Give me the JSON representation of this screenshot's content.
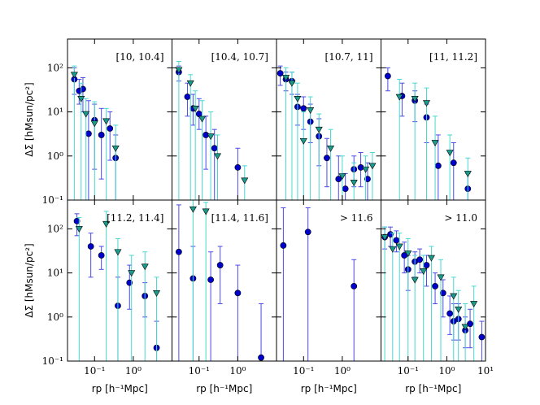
{
  "chart_data": {
    "type": "scatter",
    "xlabel": "rp [h⁻¹Mpc]",
    "ylabel": "ΔΣ [hMsun/pc²]",
    "xlog": true,
    "ylog": true,
    "xlim": [
      0.02,
      10
    ],
    "ylim": [
      0.1,
      450
    ],
    "xticks": [
      {
        "value": 0.1,
        "label": "10⁻¹"
      },
      {
        "value": 1,
        "label": "10⁰"
      },
      {
        "value": 10,
        "label": "10¹"
      }
    ],
    "yticks": [
      {
        "value": 0.1,
        "label": "10⁻¹"
      },
      {
        "value": 1,
        "label": "10⁰"
      },
      {
        "value": 10,
        "label": "10¹"
      },
      {
        "value": 100,
        "label": "10²"
      }
    ],
    "panels": [
      {
        "label": "[10, 10.4]",
        "series": [
          {
            "marker": "circle",
            "color": "#0000cc",
            "ecolor": "#4a4ae8",
            "x": [
              0.03,
              0.04,
              0.05,
              0.07,
              0.1,
              0.15,
              0.25,
              0.35
            ],
            "values": [
              55,
              30,
              33,
              3.2,
              6.5,
              3,
              4.2,
              0.9
            ],
            "lower": [
              25,
              15,
              10,
              0.05,
              0.5,
              0.3,
              0.8,
              0.05
            ],
            "upper": [
              100,
              55,
              60,
              18,
              15,
              12,
              10,
              3
            ]
          },
          {
            "marker": "triangle",
            "color": "#1a9c8c",
            "ecolor": "#48d8d0",
            "x": [
              0.03,
              0.045,
              0.06,
              0.1,
              0.2,
              0.35
            ],
            "values": [
              70,
              20,
              9,
              5.5,
              6.2,
              1.5
            ],
            "lower": [
              0.05,
              0.05,
              0.05,
              0.05,
              0.05,
              0.05
            ],
            "upper": [
              110,
              45,
              20,
              17,
              12,
              5
            ]
          }
        ]
      },
      {
        "label": "[10.4, 10.7]",
        "series": [
          {
            "marker": "circle",
            "color": "#0000cc",
            "ecolor": "#4a4ae8",
            "x": [
              0.03,
              0.05,
              0.07,
              0.1,
              0.15,
              0.25,
              1
            ],
            "values": [
              80,
              22,
              12,
              9,
              3,
              1.5,
              0.55
            ],
            "lower": [
              50,
              8,
              5,
              4,
              0.5,
              0.05,
              0.1
            ],
            "upper": [
              110,
              45,
              25,
              20,
              8,
              4,
              1.5
            ]
          },
          {
            "marker": "triangle",
            "color": "#1a9c8c",
            "ecolor": "#48d8d0",
            "x": [
              0.03,
              0.06,
              0.08,
              0.12,
              0.2,
              0.3,
              1.5
            ],
            "values": [
              90,
              45,
              12,
              7,
              2.8,
              1,
              0.28
            ],
            "lower": [
              0.05,
              0.05,
              0.05,
              0.05,
              0.05,
              0.05,
              0.05
            ],
            "upper": [
              140,
              70,
              30,
              18,
              10,
              3,
              0.6
            ]
          }
        ]
      },
      {
        "label": "[10.7, 11]",
        "series": [
          {
            "marker": "circle",
            "color": "#0000cc",
            "ecolor": "#4a4ae8",
            "x": [
              0.025,
              0.035,
              0.05,
              0.07,
              0.1,
              0.15,
              0.25,
              0.4,
              0.8,
              1.2,
              2,
              3,
              4.5
            ],
            "values": [
              75,
              55,
              50,
              13,
              12,
              6,
              2.8,
              0.9,
              0.3,
              0.18,
              0.5,
              0.55,
              0.3
            ],
            "lower": [
              40,
              30,
              25,
              5,
              4,
              2,
              0.6,
              0.2,
              0.05,
              0.05,
              0.2,
              0.2,
              0.1
            ],
            "upper": [
              110,
              80,
              80,
              25,
              22,
              15,
              7,
              2.5,
              1,
              0.4,
              1,
              1.2,
              0.7
            ]
          },
          {
            "marker": "triangle",
            "color": "#1a9c8c",
            "ecolor": "#48d8d0",
            "x": [
              0.035,
              0.05,
              0.07,
              0.1,
              0.15,
              0.25,
              0.5,
              1,
              2,
              4,
              6
            ],
            "values": [
              60,
              45,
              20,
              2.2,
              11,
              4,
              1.5,
              0.35,
              0.25,
              0.5,
              0.6
            ],
            "lower": [
              0.05,
              0.05,
              0.05,
              0.05,
              0.05,
              0.05,
              0.05,
              0.05,
              0.05,
              0.05,
              0.05
            ],
            "upper": [
              100,
              80,
              45,
              10,
              22,
              9,
              4,
              1,
              0.7,
              1,
              1.2
            ]
          }
        ]
      },
      {
        "label": "[11, 11.2]",
        "series": [
          {
            "marker": "circle",
            "color": "#0000cc",
            "ecolor": "#4a4ae8",
            "x": [
              0.03,
              0.07,
              0.15,
              0.3,
              0.6,
              1.5,
              3.5
            ],
            "values": [
              65,
              23,
              18,
              7.5,
              0.6,
              0.7,
              0.18
            ],
            "lower": [
              30,
              8,
              6,
              2,
              0.05,
              0.1,
              0.05
            ],
            "upper": [
              100,
              45,
              30,
              15,
              3,
              2,
              0.4
            ]
          },
          {
            "marker": "triangle",
            "color": "#1a9c8c",
            "ecolor": "#48d8d0",
            "x": [
              0.06,
              0.15,
              0.3,
              0.5,
              1.2,
              3.5
            ],
            "values": [
              22,
              20,
              16,
              2,
              1.2,
              0.4
            ],
            "lower": [
              0.05,
              0.05,
              0.05,
              0.05,
              0.05,
              0.05
            ],
            "upper": [
              55,
              45,
              35,
              8,
              3,
              0.9
            ]
          }
        ]
      },
      {
        "label": "[11.2, 11.4]",
        "series": [
          {
            "marker": "circle",
            "color": "#0000cc",
            "ecolor": "#4a4ae8",
            "x": [
              0.035,
              0.08,
              0.15,
              0.4,
              0.8,
              2,
              4
            ],
            "values": [
              150,
              40,
              25,
              1.8,
              6,
              3,
              0.2
            ],
            "lower": [
              70,
              8,
              12,
              0.05,
              1.5,
              1,
              0.05
            ],
            "upper": [
              220,
              80,
              40,
              8,
              15,
              6,
              0.8
            ]
          },
          {
            "marker": "triangle",
            "color": "#1a9c8c",
            "ecolor": "#48d8d0",
            "x": [
              0.04,
              0.2,
              0.4,
              0.9,
              2,
              4
            ],
            "values": [
              100,
              130,
              30,
              10,
              14,
              3.5
            ],
            "lower": [
              0.05,
              0.05,
              0.05,
              0.05,
              0.05,
              0.05
            ],
            "upper": [
              180,
              250,
              60,
              25,
              30,
              8
            ]
          }
        ]
      },
      {
        "label": "[11.4, 11.6]",
        "series": [
          {
            "marker": "circle",
            "color": "#0000cc",
            "ecolor": "#4a4ae8",
            "x": [
              0.03,
              0.07,
              0.2,
              0.35,
              1,
              4
            ],
            "values": [
              30,
              7.5,
              7,
              15,
              3.5,
              0.12
            ],
            "lower": [
              0.05,
              0.05,
              0.05,
              2,
              0.05,
              0.05
            ],
            "upper": [
              350,
              40,
              30,
              40,
              15,
              2
            ]
          },
          {
            "marker": "triangle",
            "color": "#1a9c8c",
            "ecolor": "#48d8d0",
            "x": [
              0.07,
              0.15
            ],
            "values": [
              280,
              250
            ],
            "lower": [
              0.05,
              0.05
            ],
            "upper": [
              500,
              400
            ]
          }
        ]
      },
      {
        "label": "> 11.6",
        "series": [
          {
            "marker": "circle",
            "color": "#0000cc",
            "ecolor": "#4a4ae8",
            "x": [
              0.03,
              0.13,
              2
            ],
            "values": [
              42,
              85,
              5
            ],
            "lower": [
              0.05,
              0.05,
              0.05
            ],
            "upper": [
              300,
              300,
              20
            ]
          }
        ]
      },
      {
        "label": "> 11.0",
        "series": [
          {
            "marker": "circle",
            "color": "#0000cc",
            "ecolor": "#4a4ae8",
            "x": [
              0.025,
              0.035,
              0.05,
              0.08,
              0.1,
              0.15,
              0.2,
              0.3,
              0.5,
              0.8,
              1.2,
              1.5,
              2,
              3,
              4,
              8
            ],
            "values": [
              65,
              75,
              55,
              25,
              12,
              18,
              20,
              15,
              5,
              3.5,
              1.2,
              0.8,
              0.9,
              0.5,
              0.7,
              0.35
            ],
            "lower": [
              35,
              40,
              30,
              10,
              4,
              8,
              10,
              5,
              2,
              1,
              0.4,
              0.3,
              0.3,
              0.2,
              0.2,
              0.1
            ],
            "upper": [
              110,
              110,
              90,
              50,
              25,
              30,
              35,
              25,
              10,
              7,
              3,
              2,
              2,
              1,
              1.5,
              0.8
            ]
          },
          {
            "marker": "triangle",
            "color": "#1a9c8c",
            "ecolor": "#48d8d0",
            "x": [
              0.025,
              0.04,
              0.06,
              0.1,
              0.15,
              0.25,
              0.4,
              0.7,
              1.5,
              2,
              3,
              5
            ],
            "values": [
              65,
              35,
              40,
              28,
              7,
              11,
              22,
              8,
              3,
              1.5,
              0.6,
              2
            ],
            "lower": [
              0.05,
              0.05,
              0.05,
              0.05,
              0.05,
              0.05,
              0.05,
              0.05,
              0.05,
              0.05,
              0.05,
              0.05
            ],
            "upper": [
              110,
              80,
              80,
              60,
              25,
              25,
              40,
              20,
              8,
              4,
              2,
              5
            ]
          }
        ]
      }
    ]
  }
}
